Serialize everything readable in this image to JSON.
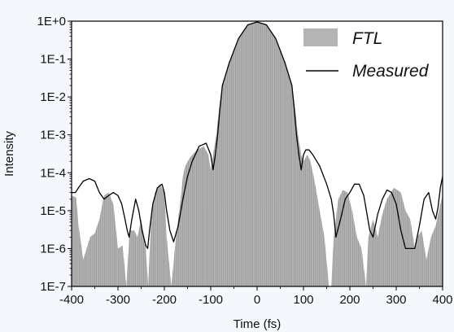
{
  "chart_data": {
    "type": "area",
    "xlabel": "Time (fs)",
    "ylabel": "Intensity",
    "xlim": [
      -400,
      400
    ],
    "ylim": [
      1e-07,
      1
    ],
    "y_scale": "log",
    "grid": false,
    "legend_position": "top-right",
    "x_ticks": [
      -400,
      -300,
      -200,
      -100,
      0,
      100,
      200,
      300,
      400
    ],
    "x_tick_labels": [
      "-400",
      "-300",
      "-200",
      "-100",
      "0",
      "100",
      "200",
      "300",
      "400"
    ],
    "y_ticks": [
      1,
      0.1,
      0.01,
      0.001,
      0.0001,
      1e-05,
      1e-06,
      1e-07
    ],
    "y_tick_labels": [
      "1E+0",
      "1E-1",
      "1E-2",
      "1E-3",
      "1E-4",
      "1E-5",
      "1E-6",
      "1E-7"
    ],
    "series": [
      {
        "name": "FTL",
        "style": "filled-area",
        "color": "#b4b4b4",
        "x": [
          -400,
          -390,
          -385,
          -380,
          -375,
          -370,
          -360,
          -350,
          -340,
          -330,
          -320,
          -310,
          -300,
          -290,
          -282,
          -275,
          -265,
          -258,
          -250,
          -240,
          -235,
          -228,
          -220,
          -210,
          -200,
          -195,
          -185,
          -175,
          -165,
          -160,
          -155,
          -145,
          -130,
          -115,
          -105,
          -100,
          -95,
          -88,
          -82,
          -75,
          -60,
          -40,
          -20,
          0,
          20,
          40,
          60,
          75,
          82,
          88,
          95,
          100,
          108,
          115,
          125,
          135,
          145,
          155,
          160,
          165,
          175,
          185,
          195,
          205,
          215,
          225,
          235,
          240,
          250,
          260,
          270,
          280,
          295,
          310,
          320,
          330,
          340,
          345,
          355,
          365,
          375,
          385,
          395,
          400
        ],
        "y": [
          2.5e-05,
          2.2e-05,
          4e-06,
          1.5e-06,
          5e-07,
          8e-07,
          2e-06,
          2.5e-06,
          6e-06,
          2.5e-05,
          3e-05,
          1.5e-05,
          1e-06,
          1.2e-06,
          1e-07,
          3e-06,
          3e-06,
          2e-06,
          6e-06,
          1e-06,
          1e-07,
          8e-06,
          3e-05,
          5e-05,
          3e-05,
          2e-06,
          1e-07,
          2e-06,
          2e-05,
          8e-05,
          0.00015,
          0.00025,
          0.0004,
          0.0005,
          0.0003,
          0.00012,
          0.0003,
          0.001,
          0.005,
          0.02,
          0.08,
          0.35,
          0.8,
          0.95,
          0.8,
          0.35,
          0.08,
          0.02,
          0.005,
          0.001,
          0.0003,
          0.0002,
          0.0003,
          0.0002,
          5e-05,
          1e-05,
          2e-06,
          1e-07,
          1e-07,
          2e-06,
          2e-05,
          3.5e-05,
          3e-05,
          1e-05,
          2e-06,
          1e-06,
          1e-07,
          2e-06,
          6e-06,
          2e-06,
          8e-06,
          2e-05,
          4e-05,
          3e-05,
          1e-05,
          6e-06,
          1e-06,
          2e-06,
          3e-06,
          5e-07,
          2e-06,
          4e-06,
          1.5e-05,
          2.5e-05
        ]
      },
      {
        "name": "Measured",
        "style": "line",
        "color": "#000000",
        "x": [
          -400,
          -392,
          -385,
          -375,
          -362,
          -350,
          -340,
          -330,
          -320,
          -310,
          -300,
          -292,
          -285,
          -280,
          -276,
          -270,
          -262,
          -255,
          -248,
          -240,
          -236,
          -232,
          -225,
          -215,
          -205,
          -200,
          -195,
          -188,
          -180,
          -170,
          -160,
          -150,
          -140,
          -125,
          -110,
          -100,
          -95,
          -90,
          -85,
          -80,
          -75,
          -60,
          -40,
          -20,
          0,
          20,
          40,
          60,
          75,
          80,
          85,
          90,
          95,
          100,
          105,
          112,
          120,
          135,
          150,
          160,
          165,
          170,
          180,
          190,
          200,
          210,
          220,
          230,
          237,
          243,
          250,
          260,
          270,
          280,
          290,
          300,
          310,
          320,
          330,
          340,
          350,
          360,
          370,
          378,
          385,
          390,
          395,
          400
        ],
        "y": [
          3e-05,
          3e-05,
          4e-05,
          6e-05,
          7e-05,
          6e-05,
          3e-05,
          2e-05,
          2.5e-05,
          3e-05,
          2.5e-05,
          1.5e-05,
          6e-06,
          3e-06,
          2e-06,
          6e-06,
          2e-05,
          1e-05,
          3e-06,
          1.2e-06,
          1e-06,
          3e-06,
          1.5e-05,
          4e-05,
          5e-05,
          3e-05,
          1e-05,
          3e-06,
          1.5e-06,
          4e-06,
          2e-05,
          8e-05,
          0.0002,
          0.0005,
          0.0006,
          0.0003,
          0.00012,
          0.0003,
          0.001,
          0.005,
          0.02,
          0.08,
          0.35,
          0.8,
          0.95,
          0.8,
          0.35,
          0.08,
          0.02,
          0.005,
          0.001,
          0.0003,
          0.00012,
          0.0003,
          0.0004,
          0.0004,
          0.0003,
          0.00015,
          5e-05,
          2e-05,
          8e-06,
          2e-06,
          6e-06,
          2e-05,
          3e-05,
          5e-05,
          5e-05,
          2.5e-05,
          8e-06,
          3e-06,
          2e-06,
          8e-06,
          2e-05,
          3.5e-05,
          3e-05,
          1.5e-05,
          3e-06,
          1e-06,
          1e-06,
          1e-06,
          4e-06,
          2e-05,
          3e-05,
          1e-05,
          6e-06,
          1.2e-05,
          4e-05,
          8e-05
        ]
      }
    ]
  }
}
